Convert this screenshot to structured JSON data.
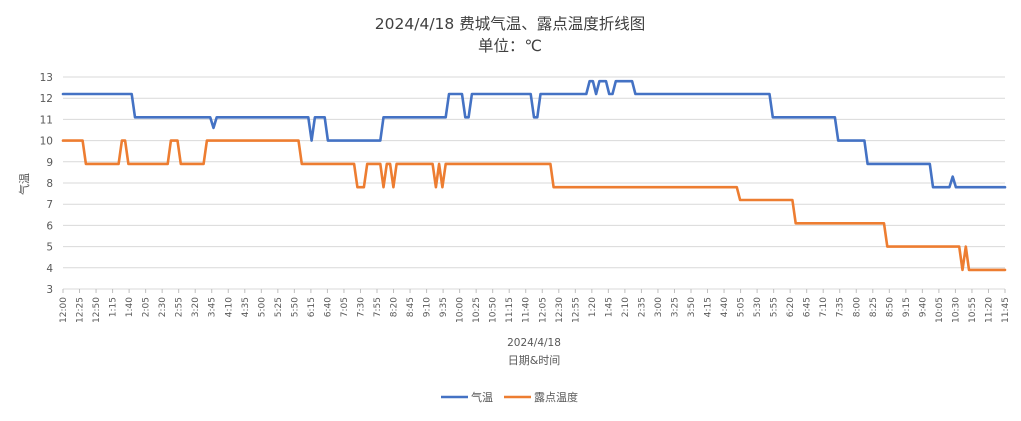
{
  "chart_data": {
    "type": "line",
    "title": "2024/4/18 费城气温、露点温度折线图",
    "subtitle": "单位：℃",
    "xlabel": "日期&时间",
    "xlabel_date": "2024/4/18",
    "ylabel": "气温",
    "ylim": [
      3,
      13
    ],
    "yticks": [
      3,
      4,
      5,
      6,
      7,
      8,
      9,
      10,
      11,
      12,
      13
    ],
    "grid": true,
    "legend_position": "bottom",
    "xticks": [
      "12:00",
      "12:25",
      "12:50",
      "1:15",
      "1:40",
      "2:05",
      "2:30",
      "2:55",
      "3:20",
      "3:45",
      "4:10",
      "4:35",
      "5:00",
      "5:25",
      "5:50",
      "6:15",
      "6:40",
      "7:05",
      "7:30",
      "7:55",
      "8:20",
      "8:45",
      "9:10",
      "9:35",
      "10:00",
      "10:25",
      "10:50",
      "11:15",
      "11:40",
      "12:05",
      "12:30",
      "12:55",
      "1:20",
      "1:45",
      "2:10",
      "2:35",
      "3:00",
      "3:25",
      "3:50",
      "4:15",
      "4:40",
      "5:05",
      "5:30",
      "5:55",
      "6:20",
      "6:45",
      "7:10",
      "7:35",
      "8:00",
      "8:25",
      "8:50",
      "9:15",
      "9:40",
      "10:05",
      "10:30",
      "10:55",
      "11:20",
      "11:45"
    ],
    "x_range": [
      0,
      1440
    ],
    "series": [
      {
        "name": "气温",
        "color": "#4472C4",
        "points": [
          [
            0,
            12.2
          ],
          [
            105,
            12.2
          ],
          [
            110,
            11.1
          ],
          [
            225,
            11.1
          ],
          [
            230,
            10.6
          ],
          [
            235,
            11.1
          ],
          [
            375,
            11.1
          ],
          [
            380,
            10.0
          ],
          [
            385,
            11.1
          ],
          [
            400,
            11.1
          ],
          [
            405,
            10.0
          ],
          [
            485,
            10.0
          ],
          [
            490,
            11.1
          ],
          [
            585,
            11.1
          ],
          [
            590,
            12.2
          ],
          [
            610,
            12.2
          ],
          [
            615,
            11.1
          ],
          [
            620,
            11.1
          ],
          [
            625,
            12.2
          ],
          [
            715,
            12.2
          ],
          [
            720,
            11.1
          ],
          [
            725,
            11.1
          ],
          [
            730,
            12.2
          ],
          [
            800,
            12.2
          ],
          [
            805,
            12.8
          ],
          [
            810,
            12.8
          ],
          [
            815,
            12.2
          ],
          [
            820,
            12.8
          ],
          [
            830,
            12.8
          ],
          [
            835,
            12.2
          ],
          [
            840,
            12.2
          ],
          [
            845,
            12.8
          ],
          [
            870,
            12.8
          ],
          [
            875,
            12.2
          ],
          [
            1080,
            12.2
          ],
          [
            1085,
            11.1
          ],
          [
            1180,
            11.1
          ],
          [
            1185,
            10.0
          ],
          [
            1225,
            10.0
          ],
          [
            1230,
            8.9
          ],
          [
            1325,
            8.9
          ],
          [
            1330,
            7.8
          ],
          [
            1355,
            7.8
          ],
          [
            1360,
            8.3
          ],
          [
            1365,
            7.8
          ],
          [
            1440,
            7.8
          ]
        ]
      },
      {
        "name": "露点温度",
        "color": "#ED7D31",
        "points": [
          [
            0,
            10.0
          ],
          [
            30,
            10.0
          ],
          [
            35,
            8.9
          ],
          [
            85,
            8.9
          ],
          [
            90,
            10.0
          ],
          [
            95,
            10.0
          ],
          [
            100,
            8.9
          ],
          [
            160,
            8.9
          ],
          [
            165,
            10.0
          ],
          [
            175,
            10.0
          ],
          [
            180,
            8.9
          ],
          [
            215,
            8.9
          ],
          [
            220,
            10.0
          ],
          [
            360,
            10.0
          ],
          [
            365,
            8.9
          ],
          [
            445,
            8.9
          ],
          [
            450,
            7.8
          ],
          [
            460,
            7.8
          ],
          [
            465,
            8.9
          ],
          [
            485,
            8.9
          ],
          [
            490,
            7.8
          ],
          [
            495,
            8.9
          ],
          [
            500,
            8.9
          ],
          [
            505,
            7.8
          ],
          [
            510,
            8.9
          ],
          [
            565,
            8.9
          ],
          [
            570,
            7.8
          ],
          [
            575,
            8.9
          ],
          [
            580,
            7.8
          ],
          [
            585,
            8.9
          ],
          [
            745,
            8.9
          ],
          [
            750,
            7.8
          ],
          [
            1030,
            7.8
          ],
          [
            1035,
            7.2
          ],
          [
            1115,
            7.2
          ],
          [
            1120,
            6.1
          ],
          [
            1255,
            6.1
          ],
          [
            1260,
            5.0
          ],
          [
            1370,
            5.0
          ],
          [
            1375,
            3.9
          ],
          [
            1380,
            5.0
          ],
          [
            1385,
            3.9
          ],
          [
            1440,
            3.9
          ]
        ]
      }
    ]
  }
}
